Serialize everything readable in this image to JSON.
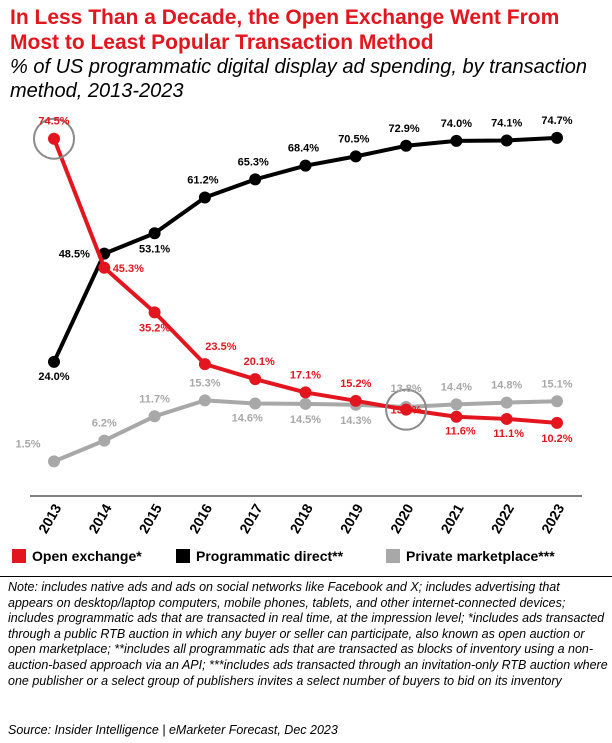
{
  "title": "In Less Than a Decade, the Open Exchange Went From Most to Least Popular Transaction Method",
  "subtitle": "% of US programmatic digital display ad spending, by transaction method, 2013-2023",
  "legend": [
    {
      "label": "Open exchange*",
      "color": "#e3161f"
    },
    {
      "label": "Programmatic direct**",
      "color": "#000000"
    },
    {
      "label": "Private marketplace***",
      "color": "#a8a8a8"
    }
  ],
  "note": "Note: includes native ads and ads on social networks like Facebook and X; includes advertising that appears on desktop/laptop computers, mobile phones, tablets, and other internet-connected devices; includes programmatic ads that are transacted in real time, at the impression level; *includes ads transacted through a public RTB auction in which any buyer or seller can participate, also known as open auction or open marketplace; **includes all programmatic ads that are transacted as blocks of inventory using a non-auction-based approach via an API; ***includes ads transacted through an invitation-only RTB auction where one publisher or a select group of publishers invites a select number of buyers to bid on its inventory",
  "source": "Source: Insider Intelligence | eMarketer Forecast, Dec 2023",
  "chart_data": {
    "type": "line",
    "x": [
      "2013",
      "2014",
      "2015",
      "2016",
      "2017",
      "2018",
      "2019",
      "2020",
      "2021",
      "2022",
      "2023"
    ],
    "ylim": [
      0,
      80
    ],
    "grid": false,
    "legend_position": "bottom",
    "series": [
      {
        "name": "Programmatic direct**",
        "color": "#000000",
        "values": [
          24.0,
          48.5,
          53.1,
          61.2,
          65.3,
          68.4,
          70.5,
          72.9,
          74.0,
          74.1,
          74.7
        ],
        "labels": [
          "24.0%",
          "48.5%",
          "53.1%",
          "61.2%",
          "65.3%",
          "68.4%",
          "70.5%",
          "72.9%",
          "74.0%",
          "74.1%",
          "74.7%"
        ]
      },
      {
        "name": "Open exchange*",
        "color": "#e3161f",
        "values": [
          74.5,
          45.3,
          35.2,
          23.5,
          20.1,
          17.1,
          15.2,
          13.2,
          11.6,
          11.1,
          10.2
        ],
        "labels": [
          "74.5%",
          "45.3%",
          "35.2%",
          "23.5%",
          "20.1%",
          "17.1%",
          "15.2%",
          "13.2%",
          "11.6%",
          "11.1%",
          "10.2%"
        ]
      },
      {
        "name": "Private marketplace***",
        "color": "#a8a8a8",
        "values": [
          1.5,
          6.2,
          11.7,
          15.3,
          14.6,
          14.5,
          14.3,
          13.8,
          14.4,
          14.8,
          15.1
        ],
        "labels": [
          "1.5%",
          "6.2%",
          "11.7%",
          "15.3%",
          "14.6%",
          "14.5%",
          "14.3%",
          "13.8%",
          "14.4%",
          "14.8%",
          "15.1%"
        ]
      }
    ],
    "highlighted_points": [
      {
        "series": "Open exchange*",
        "x": "2013"
      },
      {
        "series": "Open exchange*",
        "x": "2020"
      }
    ]
  }
}
